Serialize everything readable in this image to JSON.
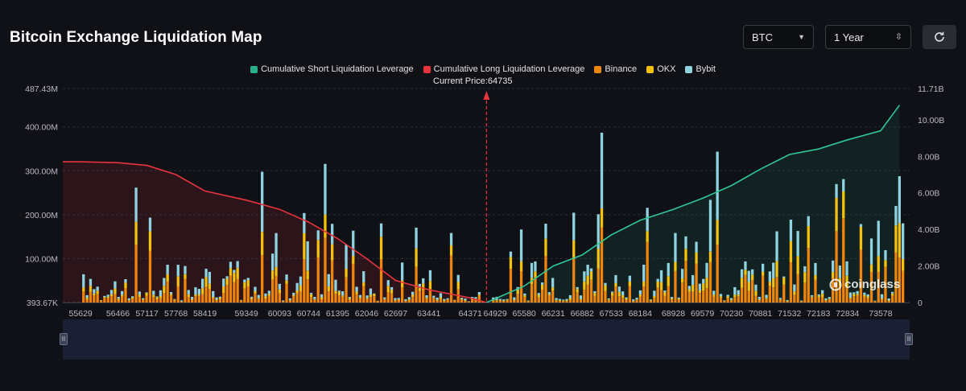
{
  "header": {
    "title": "Bitcoin Exchange Liquidation Map",
    "coin_select": "BTC",
    "range_select": "1 Year"
  },
  "legend": {
    "items": [
      {
        "label": "Cumulative Short Liquidation Leverage",
        "color": "#26b08a"
      },
      {
        "label": "Cumulative Long Liquidation Leverage",
        "color": "#e8343e"
      },
      {
        "label": "Binance",
        "color": "#f0850c"
      },
      {
        "label": "OKX",
        "color": "#f4c20d"
      },
      {
        "label": "Bybit",
        "color": "#8fd3e0"
      }
    ]
  },
  "current_price_label": "Current Price:64735",
  "watermark": "coinglass",
  "chart_data": {
    "type": "bar",
    "left_axis_ticks": [
      "487.43M",
      "400.00M",
      "300.00M",
      "200.00M",
      "100.00M",
      "393.67K"
    ],
    "right_axis_ticks": [
      "11.71B",
      "10.00B",
      "8.00B",
      "6.00B",
      "4.00B",
      "2.00B",
      "0"
    ],
    "x_tick_labels": [
      "55629",
      "56466",
      "57117",
      "57768",
      "58419",
      "59349",
      "60093",
      "60744",
      "61395",
      "62046",
      "62697",
      "63441",
      "64371",
      "64929",
      "65580",
      "66231",
      "66882",
      "67533",
      "68184",
      "68928",
      "69579",
      "70230",
      "70881",
      "71532",
      "72183",
      "72834",
      "73578"
    ],
    "current_price": 64735,
    "left_ylim": [
      0,
      487.43
    ],
    "right_ylim": [
      0,
      11.71
    ],
    "left_unit": "M",
    "right_unit": "B",
    "cumulative_long": [
      [
        55629,
        7.7
      ],
      [
        56466,
        7.65
      ],
      [
        57117,
        7.5
      ],
      [
        57768,
        7.0
      ],
      [
        58419,
        6.1
      ],
      [
        59349,
        5.6
      ],
      [
        60093,
        5.1
      ],
      [
        60744,
        4.4
      ],
      [
        61395,
        3.5
      ],
      [
        62046,
        2.4
      ],
      [
        62697,
        1.2
      ],
      [
        63441,
        0.7
      ],
      [
        64371,
        0.25
      ],
      [
        64735,
        0.0
      ]
    ],
    "cumulative_short": [
      [
        64735,
        0.0
      ],
      [
        65580,
        0.9
      ],
      [
        66231,
        2.0
      ],
      [
        66882,
        2.6
      ],
      [
        67533,
        3.7
      ],
      [
        68184,
        4.5
      ],
      [
        68928,
        5.1
      ],
      [
        69579,
        5.7
      ],
      [
        70230,
        6.4
      ],
      [
        70881,
        7.3
      ],
      [
        71532,
        8.1
      ],
      [
        72183,
        8.4
      ],
      [
        72834,
        8.9
      ],
      [
        73578,
        9.4
      ],
      [
        74000,
        10.8
      ]
    ],
    "series": [
      {
        "name": "Binance",
        "color": "#f0850c"
      },
      {
        "name": "OKX",
        "color": "#f4c20d"
      },
      {
        "name": "Bybit",
        "color": "#8fd3e0"
      }
    ],
    "grid": true,
    "legend_position": "top-center"
  }
}
